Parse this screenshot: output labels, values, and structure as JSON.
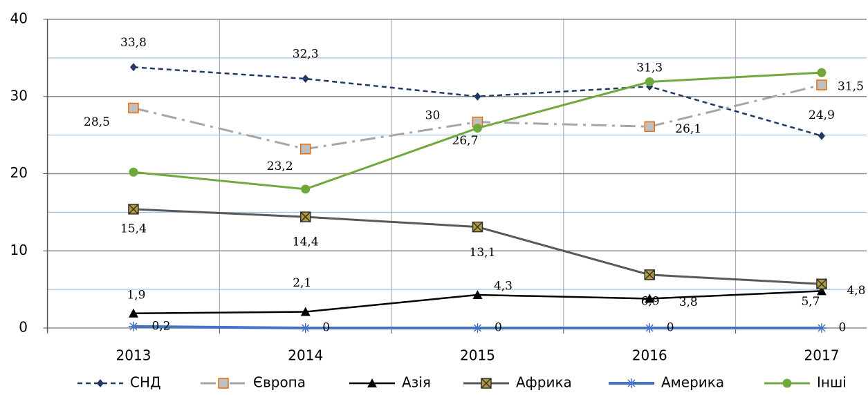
{
  "chart_data": {
    "type": "line",
    "categories": [
      "2013",
      "2014",
      "2015",
      "2016",
      "2017"
    ],
    "ylim": [
      0,
      40
    ],
    "yticks": [
      0,
      10,
      20,
      30,
      40
    ],
    "minor_yticks": [
      5,
      15,
      25,
      35
    ],
    "grid": true,
    "legend": "bottom",
    "series": [
      {
        "name": "СНД",
        "color": "#1f3864",
        "values": [
          33.8,
          32.3,
          30,
          31.3,
          24.9
        ],
        "value_labels": [
          "33,8",
          "32,3",
          "30",
          "31,3",
          "24,9"
        ]
      },
      {
        "name": "Європа",
        "color": "#a6a6a6",
        "values": [
          28.5,
          23.2,
          26.7,
          26.1,
          31.5
        ],
        "value_labels": [
          "28,5",
          "23,2",
          "26,7",
          "26,1",
          "31,5"
        ]
      },
      {
        "name": "Азія",
        "color": "#000000",
        "values": [
          1.9,
          2.1,
          4.3,
          3.8,
          4.8
        ],
        "value_labels": [
          "1,9",
          "2,1",
          "4,3",
          "3,8",
          "4,8"
        ]
      },
      {
        "name": "Африка",
        "color": "#595959",
        "values": [
          15.4,
          14.4,
          13.1,
          6.9,
          5.7
        ],
        "value_labels": [
          "15,4",
          "14,4",
          "13,1",
          "6,9",
          "5,7"
        ]
      },
      {
        "name": "Америка",
        "color": "#4472c4",
        "values": [
          0.2,
          0,
          0,
          0,
          0
        ],
        "value_labels": [
          "0,2",
          "0",
          "0",
          "0",
          "0"
        ]
      },
      {
        "name": "Інші",
        "color": "#70a83c",
        "values": [
          20.2,
          18,
          25.9,
          31.9,
          33.1
        ]
      }
    ]
  }
}
